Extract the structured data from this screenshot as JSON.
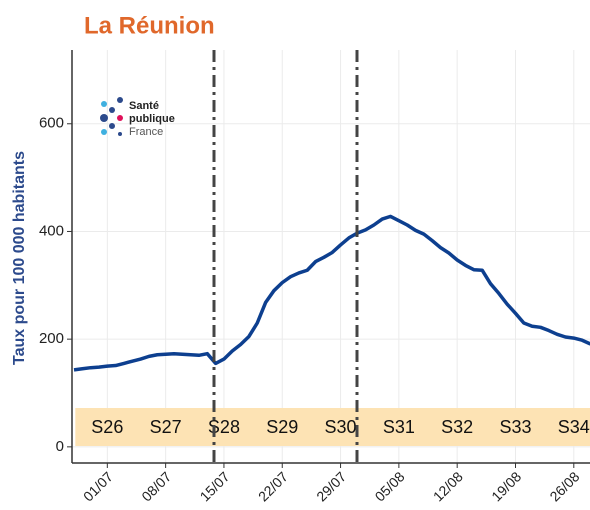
{
  "chart_data": {
    "type": "line",
    "title": "La Réunion",
    "y_label": "Taux pour 100 000 habitants",
    "logo": [
      "Santé",
      "publique",
      "France"
    ],
    "weeks": [
      "S26",
      "S27",
      "S28",
      "S29",
      "S30",
      "S31",
      "S32",
      "S33",
      "S34"
    ],
    "categories": [
      null,
      null,
      null,
      null,
      "01/07",
      null,
      null,
      null,
      null,
      null,
      null,
      "08/07",
      null,
      null,
      null,
      null,
      null,
      null,
      "15/07",
      null,
      null,
      null,
      null,
      null,
      null,
      "22/07",
      null,
      null,
      null,
      null,
      null,
      null,
      "29/07",
      null,
      null,
      null,
      null,
      null,
      null,
      "05/08",
      null,
      null,
      null,
      null,
      null,
      null,
      "12/08",
      null,
      null,
      null,
      null,
      null,
      null,
      "19/08",
      null,
      null,
      null,
      null,
      null,
      null,
      "26/08",
      null,
      null
    ],
    "series": [
      {
        "name": null,
        "color": "#0d3f8f",
        "values": [
          143,
          145,
          147,
          148,
          150,
          151,
          155,
          159,
          163,
          168,
          171,
          172,
          173,
          172,
          171,
          170,
          173,
          155,
          163,
          178,
          190,
          205,
          230,
          268,
          290,
          305,
          316,
          323,
          328,
          344,
          352,
          361,
          375,
          388,
          397,
          403,
          412,
          423,
          428,
          420,
          412,
          402,
          395,
          383,
          370,
          360,
          347,
          337,
          329,
          328,
          303,
          285,
          265,
          248,
          230,
          224,
          222,
          216,
          209,
          204,
          202,
          198,
          191
        ]
      }
    ],
    "ylim": [
      -30,
      737
    ],
    "yticks": [
      0,
      200,
      400,
      600
    ],
    "grid": true
  }
}
